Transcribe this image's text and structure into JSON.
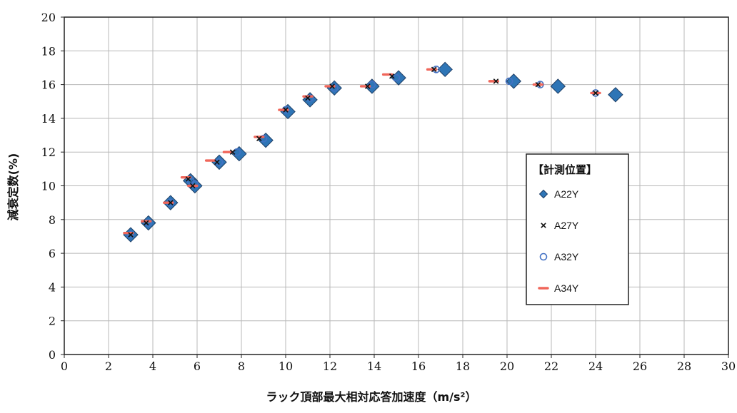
{
  "chart_data": {
    "type": "scatter",
    "xlabel": "ラック頂部最大相対応答加速度（m/s²）",
    "ylabel": "減衰定数(%)",
    "xlim": [
      0,
      30
    ],
    "ylim": [
      0,
      20
    ],
    "x_ticks": [
      "0",
      "2",
      "4",
      "6",
      "8",
      "10",
      "12",
      "14",
      "16",
      "18",
      "20",
      "22",
      "24",
      "26",
      "28",
      "30"
    ],
    "y_ticks": [
      "0",
      "2",
      "4",
      "6",
      "8",
      "10",
      "12",
      "14",
      "16",
      "18",
      "20"
    ],
    "grid": true,
    "legend": {
      "title": "【計測位置】",
      "placement": "right",
      "entries": [
        "A22Y",
        "A27Y",
        "A32Y",
        "A34Y"
      ]
    },
    "series": [
      {
        "name": "A22Y",
        "marker": "diamond",
        "color": "#2e75b6",
        "points": [
          [
            3.0,
            7.1
          ],
          [
            3.8,
            7.8
          ],
          [
            4.8,
            9.0
          ],
          [
            5.7,
            10.3
          ],
          [
            5.9,
            10.0
          ],
          [
            7.0,
            11.4
          ],
          [
            7.9,
            11.9
          ],
          [
            9.1,
            12.7
          ],
          [
            10.1,
            14.4
          ],
          [
            11.1,
            15.1
          ],
          [
            12.2,
            15.8
          ],
          [
            13.9,
            15.9
          ],
          [
            15.1,
            16.4
          ],
          [
            17.2,
            16.9
          ],
          [
            20.3,
            16.2
          ],
          [
            22.3,
            15.9
          ],
          [
            24.9,
            15.4
          ]
        ]
      },
      {
        "name": "A27Y",
        "marker": "x",
        "color": "#111111",
        "points": [
          [
            3.0,
            7.1
          ],
          [
            3.7,
            7.8
          ],
          [
            4.8,
            9.0
          ],
          [
            5.6,
            10.4
          ],
          [
            5.8,
            10.0
          ],
          [
            6.9,
            11.4
          ],
          [
            7.6,
            12.0
          ],
          [
            8.8,
            12.8
          ],
          [
            10.0,
            14.5
          ],
          [
            11.0,
            15.2
          ],
          [
            12.1,
            15.9
          ],
          [
            13.7,
            15.9
          ],
          [
            14.8,
            16.5
          ],
          [
            16.7,
            16.9
          ],
          [
            19.5,
            16.2
          ],
          [
            21.4,
            16.0
          ],
          [
            24.0,
            15.5
          ]
        ]
      },
      {
        "name": "A32Y",
        "marker": "circle",
        "color": "#4472c4",
        "points": [
          [
            3.0,
            7.1
          ],
          [
            3.8,
            7.8
          ],
          [
            4.8,
            9.0
          ],
          [
            5.7,
            10.3
          ],
          [
            5.9,
            10.1
          ],
          [
            7.0,
            11.4
          ],
          [
            7.8,
            12.0
          ],
          [
            9.0,
            12.8
          ],
          [
            10.0,
            14.5
          ],
          [
            11.1,
            15.2
          ],
          [
            12.2,
            15.8
          ],
          [
            13.9,
            16.0
          ],
          [
            15.0,
            16.4
          ],
          [
            16.8,
            16.9
          ],
          [
            20.1,
            16.2
          ],
          [
            21.5,
            16.0
          ],
          [
            24.0,
            15.5
          ]
        ]
      },
      {
        "name": "A34Y",
        "marker": "dash",
        "color": "#f0665a",
        "points": [
          [
            2.9,
            7.2
          ],
          [
            3.7,
            7.9
          ],
          [
            4.7,
            9.0
          ],
          [
            5.5,
            10.5
          ],
          [
            5.8,
            10.0
          ],
          [
            6.6,
            11.5
          ],
          [
            7.4,
            12.0
          ],
          [
            8.8,
            12.9
          ],
          [
            9.9,
            14.5
          ],
          [
            11.0,
            15.3
          ],
          [
            12.0,
            15.9
          ],
          [
            13.6,
            15.9
          ],
          [
            14.6,
            16.6
          ],
          [
            16.6,
            16.9
          ],
          [
            19.4,
            16.2
          ],
          [
            21.4,
            16.0
          ],
          [
            24.0,
            15.5
          ]
        ]
      }
    ]
  }
}
